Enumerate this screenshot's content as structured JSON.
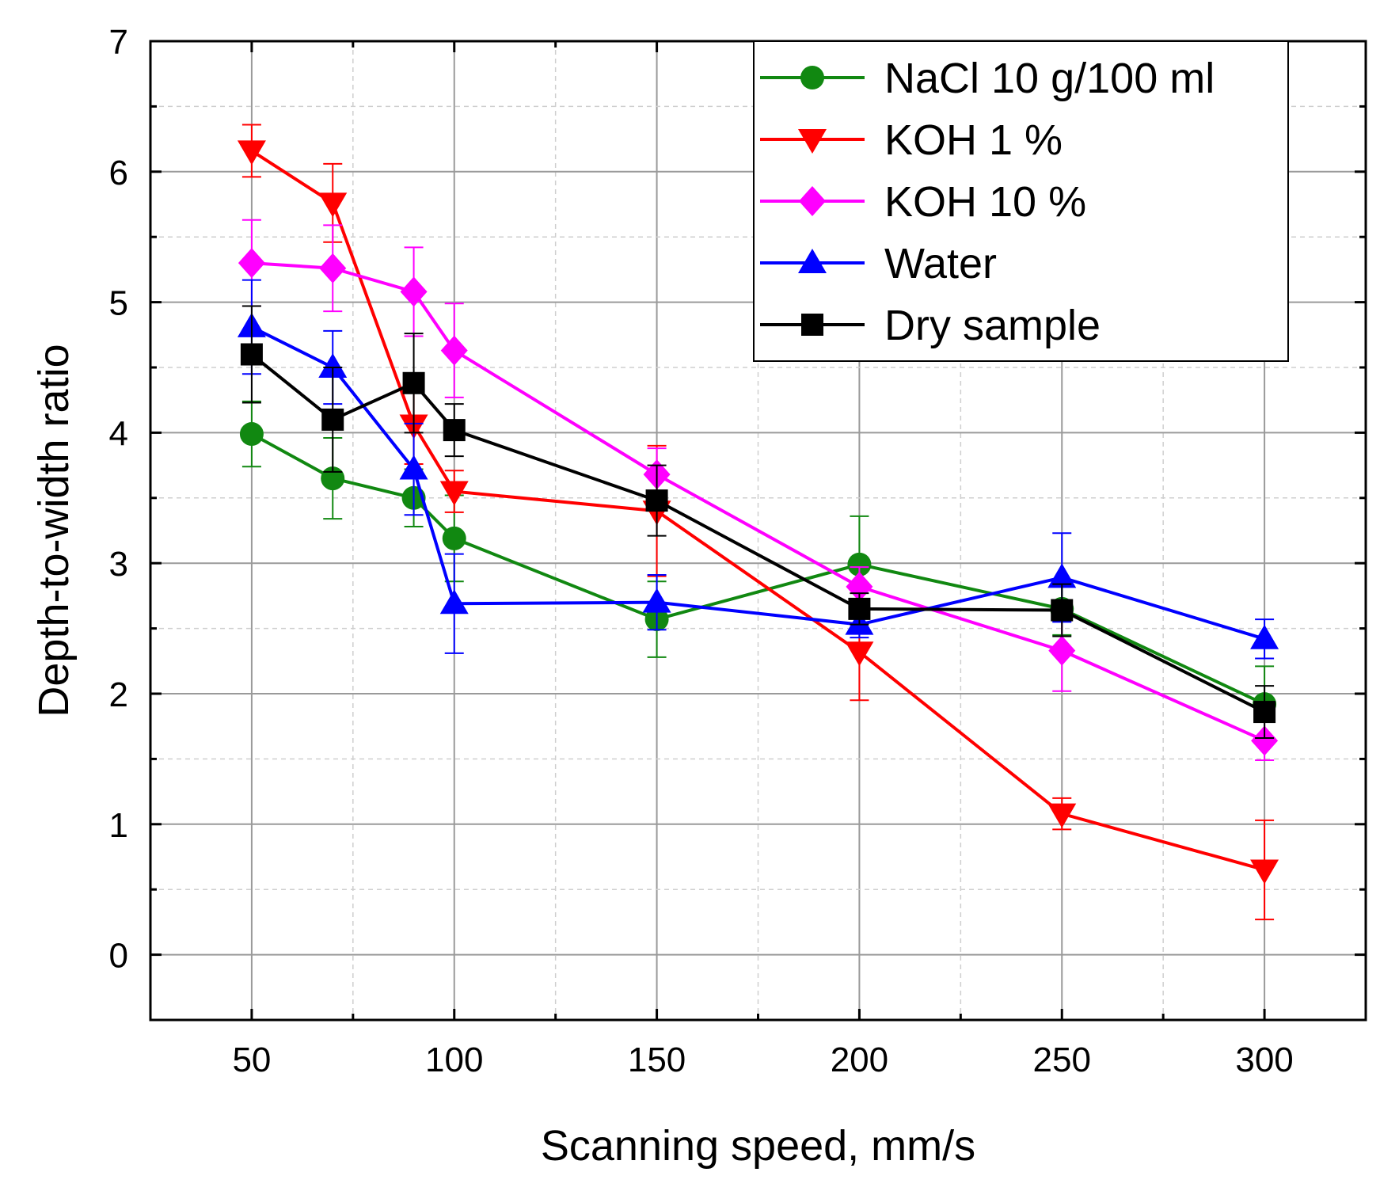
{
  "chart_data": {
    "type": "line",
    "xlabel": "Scanning speed, mm/s",
    "ylabel": "Depth-to-width ratio",
    "xlim": [
      25,
      325
    ],
    "ylim": [
      -0.5,
      7
    ],
    "xticks": [
      50,
      100,
      150,
      200,
      250,
      300
    ],
    "xticks_minor": [
      75,
      125,
      175,
      225,
      275
    ],
    "yticks": [
      0,
      1,
      2,
      3,
      4,
      5,
      6,
      7
    ],
    "yticks_minor": [
      0.5,
      1.5,
      2.5,
      3.5,
      4.5,
      5.5,
      6.5
    ],
    "grid": true,
    "legend_position": "top-right",
    "x": [
      50,
      70,
      90,
      100,
      150,
      200,
      250,
      300
    ],
    "series": [
      {
        "name": "NaCl 10 g/100 ml",
        "color": "#118811",
        "marker": "circle",
        "values": [
          3.99,
          3.65,
          3.5,
          3.19,
          2.57,
          2.99,
          2.65,
          1.92
        ],
        "errors": [
          0.25,
          0.31,
          0.22,
          0.33,
          0.29,
          0.37,
          0.2,
          0.29
        ]
      },
      {
        "name": "KOH 1 %",
        "color": "#ff0000",
        "marker": "triangle-down",
        "values": [
          6.16,
          5.76,
          4.06,
          3.55,
          3.4,
          2.32,
          1.08,
          0.65
        ],
        "errors": [
          0.2,
          0.3,
          0.3,
          0.16,
          0.5,
          0.37,
          0.12,
          0.38
        ]
      },
      {
        "name": "KOH 10 %",
        "color": "#ff00ff",
        "marker": "diamond",
        "values": [
          5.3,
          5.26,
          5.08,
          4.63,
          3.68,
          2.82,
          2.33,
          1.64
        ],
        "errors": [
          0.33,
          0.33,
          0.34,
          0.36,
          0.2,
          0.15,
          0.31,
          0.15
        ]
      },
      {
        "name": "Water",
        "color": "#0000ff",
        "marker": "triangle-up",
        "values": [
          4.81,
          4.5,
          3.72,
          2.69,
          2.7,
          2.53,
          2.89,
          2.42
        ],
        "errors": [
          0.36,
          0.28,
          0.35,
          0.38,
          0.21,
          0.1,
          0.34,
          0.15
        ]
      },
      {
        "name": "Dry sample",
        "color": "#000000",
        "marker": "square",
        "values": [
          4.6,
          4.1,
          4.38,
          4.02,
          3.48,
          2.65,
          2.64,
          1.86
        ],
        "errors": [
          0.37,
          0.4,
          0.38,
          0.2,
          0.27,
          0.12,
          0.2,
          0.2
        ]
      }
    ]
  }
}
